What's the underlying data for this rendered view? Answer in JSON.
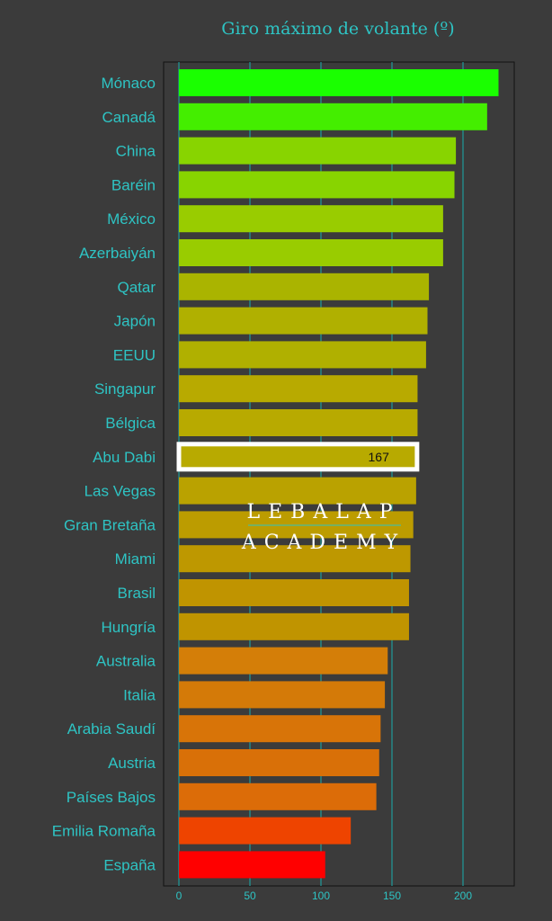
{
  "chart_data": {
    "type": "bar",
    "orientation": "horizontal",
    "title": "Giro máximo de volante (º)",
    "xlabel": "",
    "ylabel": "",
    "xlim": [
      0,
      235
    ],
    "xticks": [
      0,
      50,
      100,
      150,
      200
    ],
    "grid": true,
    "categories": [
      "Mónaco",
      "Canadá",
      "China",
      "Baréin",
      "México",
      "Azerbaiyán",
      "Qatar",
      "Japón",
      "EEUU",
      "Singapur",
      "Bélgica",
      "Abu Dabi",
      "Las Vegas",
      "Gran Bretaña",
      "Miami",
      "Brasil",
      "Hungría",
      "Australia",
      "Italia",
      "Arabia Saudí",
      "Austria",
      "Países Bajos",
      "Emilia Romaña",
      "España"
    ],
    "values": [
      225,
      217,
      195,
      194,
      186,
      186,
      176,
      175,
      174,
      168,
      168,
      167,
      167,
      165,
      163,
      162,
      162,
      147,
      145,
      142,
      141,
      139,
      121,
      103
    ],
    "colors": [
      "#1aff00",
      "#44ee00",
      "#88d400",
      "#88d400",
      "#99cc00",
      "#99cc00",
      "#aab400",
      "#b0b000",
      "#b0b000",
      "#b8aa00",
      "#b8aa00",
      "#b8aa00",
      "#baa200",
      "#bc9c00",
      "#be9800",
      "#c09400",
      "#c09400",
      "#d47e08",
      "#d47a08",
      "#d87408",
      "#d97008",
      "#dc6c08",
      "#ee4400",
      "#ff0000"
    ],
    "highlight": {
      "category": "Abu Dabi",
      "label": "167"
    }
  },
  "watermark": {
    "line1": "LEBALAP",
    "line2": "ACADEMY"
  },
  "style": {
    "accent": "#2ec4c4",
    "background": "#3b3b3b",
    "highlight_border": "#ffffff"
  }
}
